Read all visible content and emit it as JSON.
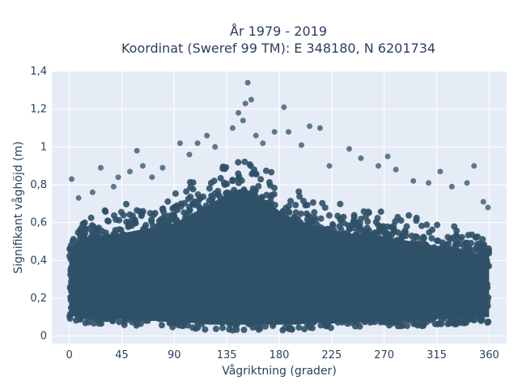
{
  "chart_data": {
    "type": "scatter",
    "title_line1": "År 1979 - 2019",
    "title_line2": "Koordinat (Sweref 99 TM): E 348180, N 6201734",
    "xlabel": "Vågriktning (grader)",
    "ylabel": "Signifikant våghöjd (m)",
    "xlim": [
      -15,
      375
    ],
    "ylim": [
      -0.04,
      1.4
    ],
    "xticks": [
      0,
      45,
      90,
      135,
      180,
      225,
      270,
      315,
      360
    ],
    "xtick_labels": [
      "0",
      "45",
      "90",
      "135",
      "180",
      "225",
      "270",
      "315",
      "360"
    ],
    "yticks": [
      0,
      0.2,
      0.4,
      0.6,
      0.8,
      1,
      1.2,
      1.4
    ],
    "ytick_labels": [
      "0",
      "0,2",
      "0,4",
      "0,6",
      "0,8",
      "1",
      "1,2",
      "1,4"
    ],
    "grid": true,
    "marker_color": "#2f5168",
    "plot_bg": "#e5ecf6",
    "density_envelope": {
      "direction_deg": [
        0,
        10,
        20,
        30,
        45,
        60,
        75,
        90,
        105,
        120,
        135,
        150,
        165,
        180,
        195,
        210,
        225,
        240,
        255,
        270,
        285,
        300,
        315,
        330,
        345,
        360
      ],
      "upper_m": [
        0.55,
        0.6,
        0.62,
        0.63,
        0.64,
        0.66,
        0.68,
        0.7,
        0.76,
        0.82,
        0.88,
        0.92,
        0.86,
        0.78,
        0.72,
        0.68,
        0.66,
        0.64,
        0.62,
        0.62,
        0.6,
        0.58,
        0.56,
        0.55,
        0.52,
        0.5
      ],
      "lower_m": [
        0.08,
        0.07,
        0.06,
        0.06,
        0.06,
        0.05,
        0.05,
        0.04,
        0.04,
        0.03,
        0.03,
        0.03,
        0.03,
        0.03,
        0.03,
        0.04,
        0.04,
        0.04,
        0.05,
        0.05,
        0.05,
        0.05,
        0.06,
        0.06,
        0.07,
        0.07
      ]
    },
    "outliers": [
      {
        "x": 2,
        "y": 0.83
      },
      {
        "x": 8,
        "y": 0.73
      },
      {
        "x": 20,
        "y": 0.76
      },
      {
        "x": 27,
        "y": 0.89
      },
      {
        "x": 38,
        "y": 0.79
      },
      {
        "x": 42,
        "y": 0.84
      },
      {
        "x": 52,
        "y": 0.87
      },
      {
        "x": 58,
        "y": 0.98
      },
      {
        "x": 63,
        "y": 0.9
      },
      {
        "x": 71,
        "y": 0.84
      },
      {
        "x": 80,
        "y": 0.89
      },
      {
        "x": 95,
        "y": 1.02
      },
      {
        "x": 103,
        "y": 0.96
      },
      {
        "x": 110,
        "y": 1.02
      },
      {
        "x": 118,
        "y": 1.06
      },
      {
        "x": 125,
        "y": 1.0
      },
      {
        "x": 140,
        "y": 1.1
      },
      {
        "x": 145,
        "y": 1.18
      },
      {
        "x": 149,
        "y": 1.14
      },
      {
        "x": 151,
        "y": 1.23
      },
      {
        "x": 153,
        "y": 1.34
      },
      {
        "x": 156,
        "y": 1.25
      },
      {
        "x": 160,
        "y": 1.06
      },
      {
        "x": 166,
        "y": 1.02
      },
      {
        "x": 176,
        "y": 1.08
      },
      {
        "x": 184,
        "y": 1.21
      },
      {
        "x": 188,
        "y": 1.08
      },
      {
        "x": 199,
        "y": 1.01
      },
      {
        "x": 206,
        "y": 1.11
      },
      {
        "x": 215,
        "y": 1.1
      },
      {
        "x": 223,
        "y": 0.9
      },
      {
        "x": 240,
        "y": 0.99
      },
      {
        "x": 250,
        "y": 0.94
      },
      {
        "x": 265,
        "y": 0.9
      },
      {
        "x": 273,
        "y": 0.95
      },
      {
        "x": 280,
        "y": 0.88
      },
      {
        "x": 295,
        "y": 0.82
      },
      {
        "x": 308,
        "y": 0.81
      },
      {
        "x": 318,
        "y": 0.87
      },
      {
        "x": 328,
        "y": 0.79
      },
      {
        "x": 341,
        "y": 0.81
      },
      {
        "x": 347,
        "y": 0.9
      },
      {
        "x": 355,
        "y": 0.71
      },
      {
        "x": 359,
        "y": 0.68
      }
    ]
  }
}
